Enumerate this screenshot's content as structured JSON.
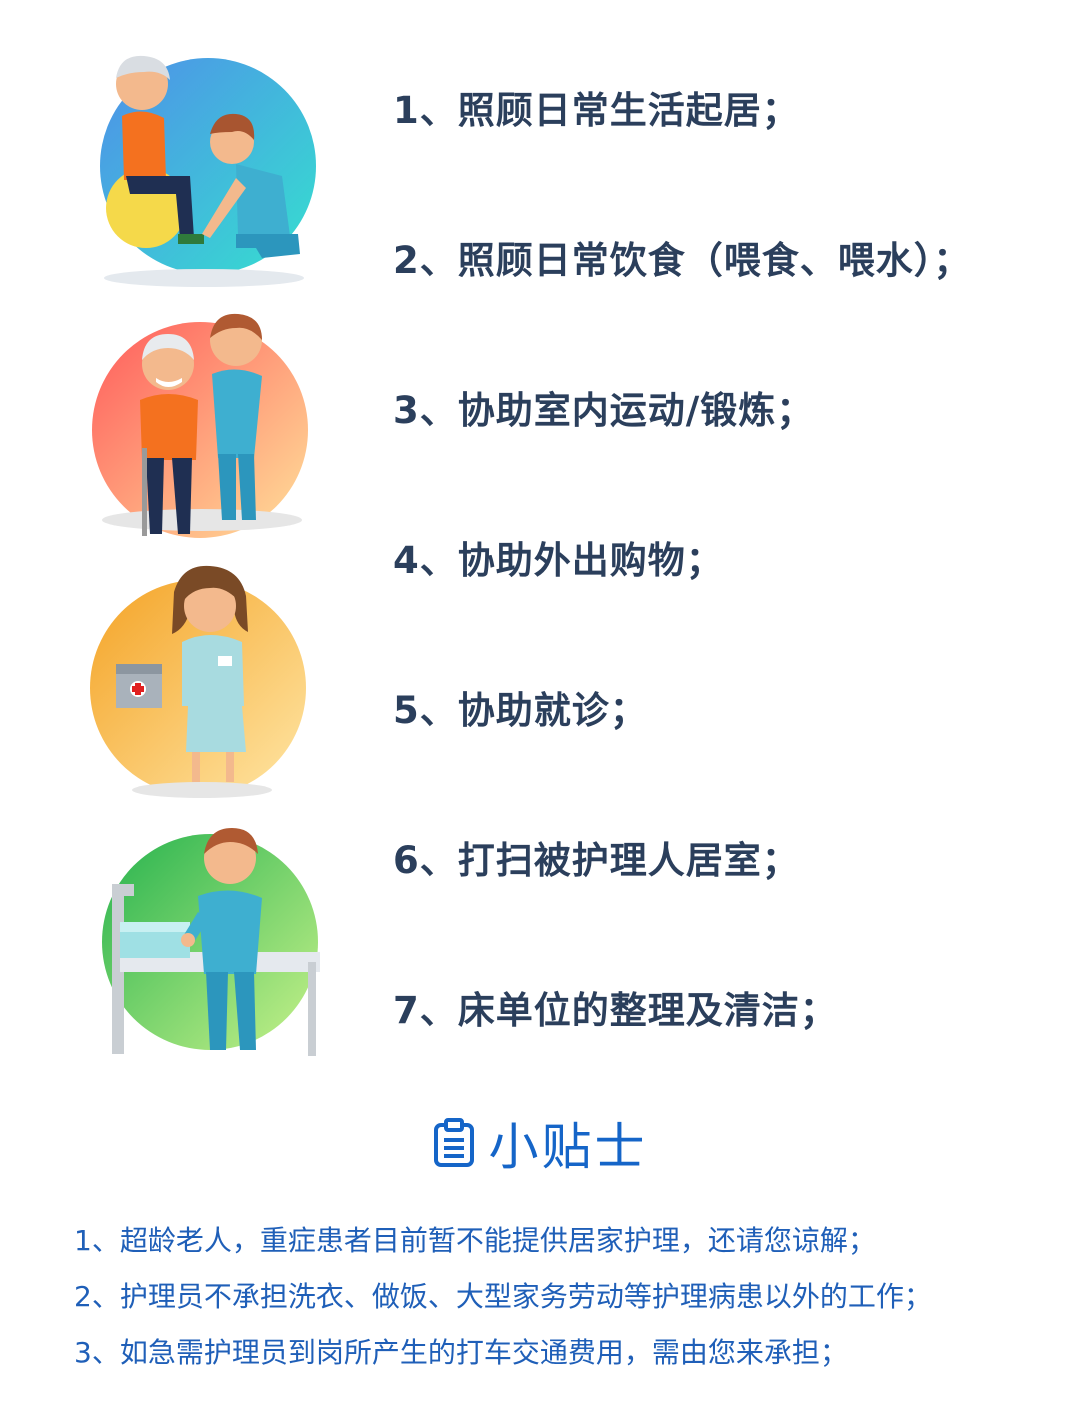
{
  "services": [
    "1、照顾日常生活起居；",
    "2、照顾日常饮食（喂食、喂水）；",
    "3、协助室内运动/锻炼；",
    "4、协助外出购物；",
    "5、协助就诊；",
    "6、打扫被护理人居室；",
    "7、床单位的整理及清洁；"
  ],
  "tips": {
    "icon": "clipboard-icon",
    "title": "小贴士",
    "items": [
      "1、超龄老人，重症患者目前暂不能提供居家护理，还请您谅解；",
      "2、护理员不承担洗衣、做饭、大型家务劳动等护理病患以外的工作；",
      "3、如急需护理员到岗所产生的打车交通费用，需由您来承担；"
    ]
  },
  "illustrations": [
    {
      "name": "caregiver-helping-elder-shoes-illustration",
      "colors": [
        "#4f8fe9",
        "#35e0cf"
      ]
    },
    {
      "name": "caregiver-walking-with-elder-illustration",
      "colors": [
        "#ff5b5b",
        "#ffe19a"
      ]
    },
    {
      "name": "nurse-with-medical-kit-illustration",
      "colors": [
        "#f4a326",
        "#ffe6a5"
      ]
    },
    {
      "name": "caregiver-making-bed-illustration",
      "colors": [
        "#25b24e",
        "#c8f28a"
      ]
    }
  ],
  "colors": {
    "service_text": "#2b3f5c",
    "tip_text": "#1f5fb8",
    "tip_title": "#1565c8",
    "skin": "#f3b98d",
    "scrubs": "#3eafd0",
    "orange_shirt": "#f4711f"
  }
}
